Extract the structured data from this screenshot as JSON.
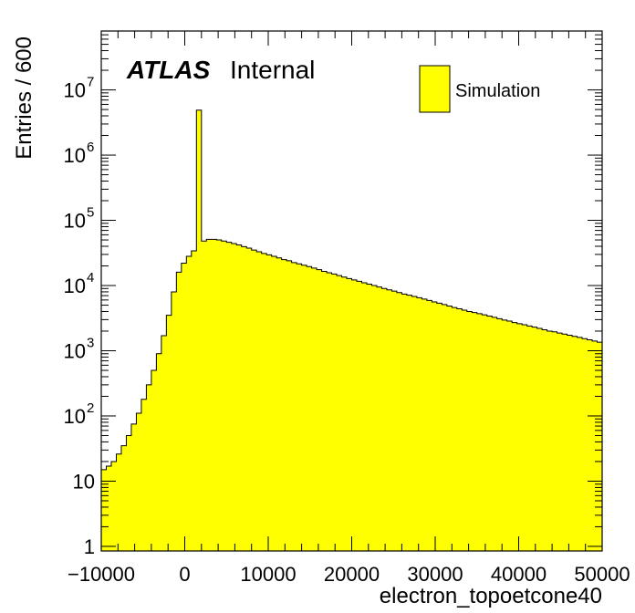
{
  "chart_data": {
    "type": "histogram",
    "xlabel": "electron_topoetcone40",
    "ylabel": "Entries / 600",
    "xlim": [
      -10000,
      50000
    ],
    "ylim": [
      0.85,
      80000000
    ],
    "log_y": true,
    "grid": false,
    "x_ticks": [
      {
        "value": -10000,
        "label": "−10000"
      },
      {
        "value": 0,
        "label": "0"
      },
      {
        "value": 10000,
        "label": "10000"
      },
      {
        "value": 20000,
        "label": "20000"
      },
      {
        "value": 30000,
        "label": "30000"
      },
      {
        "value": 40000,
        "label": "40000"
      },
      {
        "value": 50000,
        "label": "50000"
      }
    ],
    "y_ticks": [
      {
        "value": 1,
        "label": "1",
        "exp": ""
      },
      {
        "value": 10,
        "label": "10",
        "exp": ""
      },
      {
        "value": 100,
        "label": "10",
        "exp": "2"
      },
      {
        "value": 1000,
        "label": "10",
        "exp": "3"
      },
      {
        "value": 10000,
        "label": "10",
        "exp": "4"
      },
      {
        "value": 100000,
        "label": "10",
        "exp": "5"
      },
      {
        "value": 1000000,
        "label": "10",
        "exp": "6"
      },
      {
        "value": 10000000,
        "label": "10",
        "exp": "7"
      }
    ],
    "bin_width": 600,
    "series": [
      {
        "name": "Simulation",
        "color": "#ffff00",
        "edge_color": "#000000",
        "x_start": -10000,
        "values": [
          15,
          17,
          20,
          26,
          35,
          50,
          75,
          110,
          180,
          300,
          500,
          900,
          1700,
          3500,
          8000,
          16000,
          22000,
          28000,
          34000,
          4900000,
          48000,
          51000,
          51000,
          50000,
          48000,
          46000,
          44000,
          42000,
          39500,
          37500,
          35000,
          33000,
          31000,
          29500,
          28000,
          26500,
          25000,
          24000,
          22500,
          21500,
          20500,
          19500,
          18500,
          17500,
          16500,
          15700,
          15000,
          14200,
          13500,
          12800,
          12200,
          11600,
          11000,
          10500,
          10000,
          9500,
          9000,
          8600,
          8200,
          7800,
          7400,
          7100,
          6800,
          6500,
          6200,
          5900,
          5600,
          5350,
          5100,
          4850,
          4600,
          4400,
          4200,
          4000,
          3850,
          3700,
          3550,
          3400,
          3250,
          3100,
          2950,
          2850,
          2700,
          2600,
          2500,
          2400,
          2300,
          2200,
          2100,
          2000,
          1950,
          1870,
          1800,
          1730,
          1660,
          1600,
          1530,
          1470,
          1410,
          1350
        ]
      }
    ]
  },
  "annotations": {
    "atlas": "ATLAS",
    "internal": "Internal"
  },
  "legend": {
    "entry": "Simulation"
  }
}
